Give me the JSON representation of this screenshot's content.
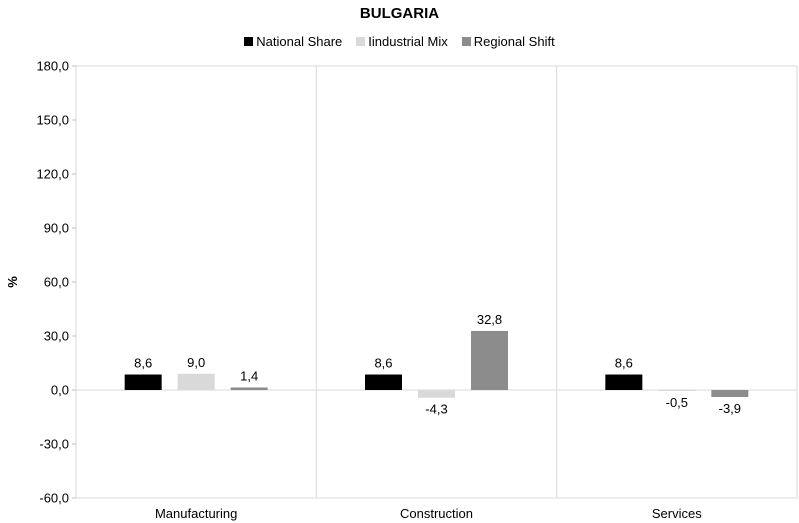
{
  "chart_data": {
    "type": "bar",
    "title": "BULGARIA",
    "ylabel": "%",
    "xlabel": "",
    "categories": [
      "Manufacturing",
      "Construction",
      "Services"
    ],
    "series": [
      {
        "name": "National Share",
        "color": "#000000",
        "values": [
          8.6,
          8.6,
          8.6
        ],
        "labels": [
          "8,6",
          "8,6",
          "8,6"
        ]
      },
      {
        "name": "Iindustrial Mix",
        "color": "#d9d9d9",
        "values": [
          9.0,
          -4.3,
          -0.5
        ],
        "labels": [
          "9,0",
          "-4,3",
          "-0,5"
        ]
      },
      {
        "name": "Regional Shift",
        "color": "#8c8c8c",
        "values": [
          1.4,
          32.8,
          -3.9
        ],
        "labels": [
          "1,4",
          "32,8",
          "-3,9"
        ]
      }
    ],
    "ylim": [
      -60,
      180
    ],
    "yticks": [
      -60,
      -30,
      0,
      30,
      60,
      90,
      120,
      150,
      180
    ],
    "ytick_labels": [
      "-60,0",
      "-30,0",
      "0,0",
      "30,0",
      "60,0",
      "90,0",
      "120,0",
      "150,0",
      "180,0"
    ],
    "grid": "vertical category separators",
    "legend_position": "top"
  }
}
